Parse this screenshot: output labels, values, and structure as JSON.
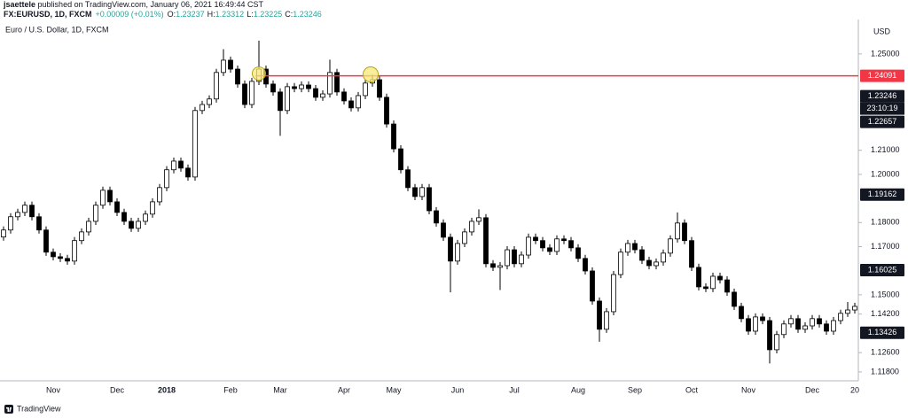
{
  "publish_line": {
    "user": "jsaettele",
    "text": "published on TradingView.com, January 06, 2021 16:49:44 CST"
  },
  "legend": {
    "symbol": "FX:EURUSD, 1D, FXCM",
    "change": "+0.00009 (+0.01%)",
    "ohlc": [
      {
        "label": "O:",
        "value": 1.23237
      },
      {
        "label": "H:",
        "value": 1.23312
      },
      {
        "label": "L:",
        "value": 1.23225
      },
      {
        "label": "C:",
        "value": 1.23246
      }
    ],
    "color": "#26a69a"
  },
  "footer": "TradingView",
  "chart_data": {
    "type": "candlestick",
    "title": "Euro / U.S. Dollar, 1D, FXCM",
    "currency": "USD",
    "up_color": "#ffffff",
    "down_color": "#000000",
    "wick_color": "#000000",
    "categories": [
      null,
      null,
      null,
      null,
      null,
      null,
      null,
      "Nov",
      null,
      null,
      null,
      null,
      null,
      null,
      null,
      null,
      "Dec",
      null,
      null,
      null,
      null,
      null,
      null,
      "2018",
      null,
      null,
      null,
      null,
      null,
      null,
      null,
      null,
      "Feb",
      null,
      null,
      null,
      null,
      null,
      null,
      "Mar",
      null,
      null,
      null,
      null,
      null,
      null,
      null,
      null,
      "Apr",
      null,
      null,
      null,
      null,
      null,
      null,
      "May",
      null,
      null,
      null,
      null,
      null,
      null,
      null,
      null,
      "Jun",
      null,
      null,
      null,
      null,
      null,
      null,
      null,
      "Jul",
      null,
      null,
      null,
      null,
      null,
      null,
      null,
      null,
      "Aug",
      null,
      null,
      null,
      null,
      null,
      null,
      null,
      "Sep",
      null,
      null,
      null,
      null,
      null,
      null,
      null,
      "Oct",
      null,
      null,
      null,
      null,
      null,
      null,
      null,
      "Nov",
      null,
      null,
      null,
      null,
      null,
      null,
      null,
      null,
      "Dec",
      null,
      null,
      null,
      null,
      null,
      "20"
    ],
    "open": [
      1.174,
      1.1769,
      1.1824,
      1.1842,
      1.1872,
      1.1824,
      1.1769,
      1.1677,
      1.1658,
      1.1651,
      1.164,
      1.1725,
      1.1761,
      1.1805,
      1.1872,
      1.1934,
      1.1886,
      1.1842,
      1.1805,
      1.1776,
      1.1805,
      1.1835,
      1.1886,
      1.1945,
      1.2019,
      1.2055,
      1.2026,
      1.1989,
      1.2265,
      1.229,
      1.2313,
      1.2423,
      1.2474,
      1.2437,
      1.2375,
      1.229,
      1.2386,
      1.2437,
      1.2375,
      1.2342,
      1.2265,
      1.2364,
      1.2356,
      1.2371,
      1.2356,
      1.232,
      1.2334,
      1.2423,
      1.2342,
      1.2305,
      1.2276,
      1.2327,
      1.2379,
      1.2393,
      1.232,
      1.2209,
      1.2106,
      1.2019,
      1.1945,
      1.1908,
      1.1945,
      1.1849,
      1.1798,
      1.1739,
      1.164,
      1.1713,
      1.1761,
      1.1805,
      1.182,
      1.1629,
      1.1614,
      1.1621,
      1.1687,
      1.1629,
      1.1665,
      1.1739,
      1.1725,
      1.1695,
      1.168,
      1.1732,
      1.1725,
      1.1695,
      1.1651,
      1.1599,
      1.1474,
      1.1357,
      1.143,
      1.1584,
      1.1677,
      1.1713,
      1.1687,
      1.1643,
      1.1621,
      1.1636,
      1.1673,
      1.1732,
      1.1798,
      1.1725,
      1.1614,
      1.1533,
      1.1526,
      1.1577,
      1.1562,
      1.1511,
      1.1452,
      1.1401,
      1.1349,
      1.1408,
      1.1393,
      1.1272,
      1.1335,
      1.1379,
      1.1401,
      1.1357,
      1.1371,
      1.1401,
      1.1379,
      1.1349,
      1.1393,
      1.1423,
      1.1437
    ],
    "high": [
      1.1784,
      1.1839,
      1.1857,
      1.1887,
      1.1887,
      1.1839,
      1.1784,
      1.1692,
      1.1673,
      1.1666,
      1.174,
      1.1776,
      1.182,
      1.1887,
      1.1949,
      1.1949,
      1.1901,
      1.1857,
      1.182,
      1.182,
      1.185,
      1.1901,
      1.196,
      1.2034,
      1.207,
      1.207,
      1.2041,
      1.228,
      1.2305,
      1.2328,
      1.2438,
      1.252,
      1.2489,
      1.2452,
      1.239,
      1.2401,
      1.2555,
      1.2452,
      1.239,
      1.2357,
      1.2379,
      1.2379,
      1.2386,
      1.2386,
      1.2371,
      1.2349,
      1.2476,
      1.2438,
      1.2357,
      1.232,
      1.2342,
      1.2394,
      1.2414,
      1.2408,
      1.2335,
      1.2224,
      1.2121,
      1.2034,
      1.196,
      1.196,
      1.196,
      1.1864,
      1.1813,
      1.1754,
      1.1728,
      1.1776,
      1.182,
      1.1855,
      1.1835,
      1.1644,
      1.1636,
      1.1702,
      1.1702,
      1.168,
      1.1754,
      1.1754,
      1.174,
      1.171,
      1.1747,
      1.1747,
      1.174,
      1.171,
      1.1666,
      1.1614,
      1.1489,
      1.1445,
      1.1599,
      1.1692,
      1.1728,
      1.1728,
      1.1702,
      1.1658,
      1.1651,
      1.1688,
      1.1747,
      1.1842,
      1.1813,
      1.174,
      1.1629,
      1.1548,
      1.1592,
      1.1592,
      1.1577,
      1.1526,
      1.1467,
      1.1416,
      1.1423,
      1.1423,
      1.1408,
      1.135,
      1.1394,
      1.1416,
      1.1416,
      1.1386,
      1.1416,
      1.1416,
      1.1394,
      1.1408,
      1.1438,
      1.147,
      1.1467
    ],
    "low": [
      1.1725,
      1.1754,
      1.1809,
      1.1827,
      1.1809,
      1.1754,
      1.1662,
      1.1643,
      1.1636,
      1.1625,
      1.1625,
      1.171,
      1.1746,
      1.179,
      1.1857,
      1.1871,
      1.1827,
      1.179,
      1.1761,
      1.1761,
      1.179,
      1.182,
      1.1871,
      1.193,
      1.2004,
      1.2011,
      1.1974,
      1.1974,
      1.225,
      1.2275,
      1.2298,
      1.2408,
      1.2422,
      1.236,
      1.2275,
      1.2275,
      1.2371,
      1.236,
      1.2327,
      1.216,
      1.225,
      1.2341,
      1.2341,
      1.2341,
      1.2305,
      1.2305,
      1.2319,
      1.2327,
      1.229,
      1.2261,
      1.2261,
      1.2312,
      1.2364,
      1.2305,
      1.2194,
      1.2091,
      1.2004,
      1.193,
      1.1893,
      1.1893,
      1.1834,
      1.1783,
      1.1724,
      1.151,
      1.1625,
      1.1698,
      1.1746,
      1.179,
      1.1614,
      1.1599,
      1.152,
      1.1606,
      1.1614,
      1.1614,
      1.165,
      1.171,
      1.168,
      1.1665,
      1.1665,
      1.171,
      1.168,
      1.1636,
      1.1584,
      1.1459,
      1.1305,
      1.1342,
      1.1415,
      1.1569,
      1.1662,
      1.1672,
      1.1628,
      1.1606,
      1.1606,
      1.1621,
      1.1658,
      1.1717,
      1.171,
      1.1599,
      1.1518,
      1.1511,
      1.1511,
      1.1547,
      1.1496,
      1.1437,
      1.1386,
      1.1334,
      1.1334,
      1.1378,
      1.1215,
      1.1257,
      1.132,
      1.1364,
      1.1342,
      1.1342,
      1.1356,
      1.1364,
      1.1334,
      1.1334,
      1.1378,
      1.1408,
      1.1422
    ],
    "close": [
      1.1769,
      1.1824,
      1.1842,
      1.1872,
      1.1824,
      1.1769,
      1.1677,
      1.1658,
      1.1651,
      1.164,
      1.1725,
      1.1761,
      1.1805,
      1.1872,
      1.1934,
      1.1886,
      1.1842,
      1.1805,
      1.1776,
      1.1805,
      1.1835,
      1.1886,
      1.1945,
      1.2019,
      1.2055,
      1.2026,
      1.1989,
      1.2265,
      1.229,
      1.2313,
      1.2423,
      1.2474,
      1.2437,
      1.2375,
      1.229,
      1.2386,
      1.2437,
      1.2375,
      1.2342,
      1.2265,
      1.2364,
      1.2356,
      1.2371,
      1.2356,
      1.232,
      1.2334,
      1.2423,
      1.2342,
      1.2305,
      1.2276,
      1.2327,
      1.2379,
      1.2393,
      1.232,
      1.2209,
      1.2106,
      1.2019,
      1.1945,
      1.1908,
      1.1945,
      1.1849,
      1.1798,
      1.1739,
      1.164,
      1.1713,
      1.1761,
      1.1805,
      1.182,
      1.1629,
      1.1614,
      1.1621,
      1.1687,
      1.1629,
      1.1665,
      1.1739,
      1.1725,
      1.1695,
      1.168,
      1.1732,
      1.1725,
      1.1695,
      1.1651,
      1.1599,
      1.1474,
      1.1357,
      1.143,
      1.1584,
      1.1677,
      1.1713,
      1.1687,
      1.1643,
      1.1621,
      1.1636,
      1.1673,
      1.1732,
      1.1798,
      1.1725,
      1.1614,
      1.1533,
      1.1526,
      1.1577,
      1.1562,
      1.1511,
      1.1452,
      1.1401,
      1.1349,
      1.1408,
      1.1393,
      1.1272,
      1.1335,
      1.1379,
      1.1401,
      1.1357,
      1.1371,
      1.1401,
      1.1379,
      1.1349,
      1.1393,
      1.1423,
      1.1437,
      1.1452
    ],
    "ylim": [
      1.1143,
      1.2643
    ],
    "yticks": [
      {
        "value": 1.25,
        "label": "1.25000"
      },
      {
        "value": 1.21,
        "label": "1.21000"
      },
      {
        "value": 1.2,
        "label": "1.20000"
      },
      {
        "value": 1.18,
        "label": "1.18000"
      },
      {
        "value": 1.17,
        "label": "1.17000"
      },
      {
        "value": 1.15,
        "label": "1.15000"
      },
      {
        "value": 1.142,
        "label": "1.14200"
      },
      {
        "value": 1.126,
        "label": "1.12600"
      },
      {
        "value": 1.118,
        "label": "1.11800"
      }
    ],
    "grid": false,
    "hline": {
      "value": 1.24091,
      "color": "#f23645"
    },
    "price_markers": [
      1.23246,
      1.22657,
      1.19162,
      1.16025,
      1.13426
    ],
    "marker_color": "#131722",
    "countdown": "23:10:19"
  }
}
